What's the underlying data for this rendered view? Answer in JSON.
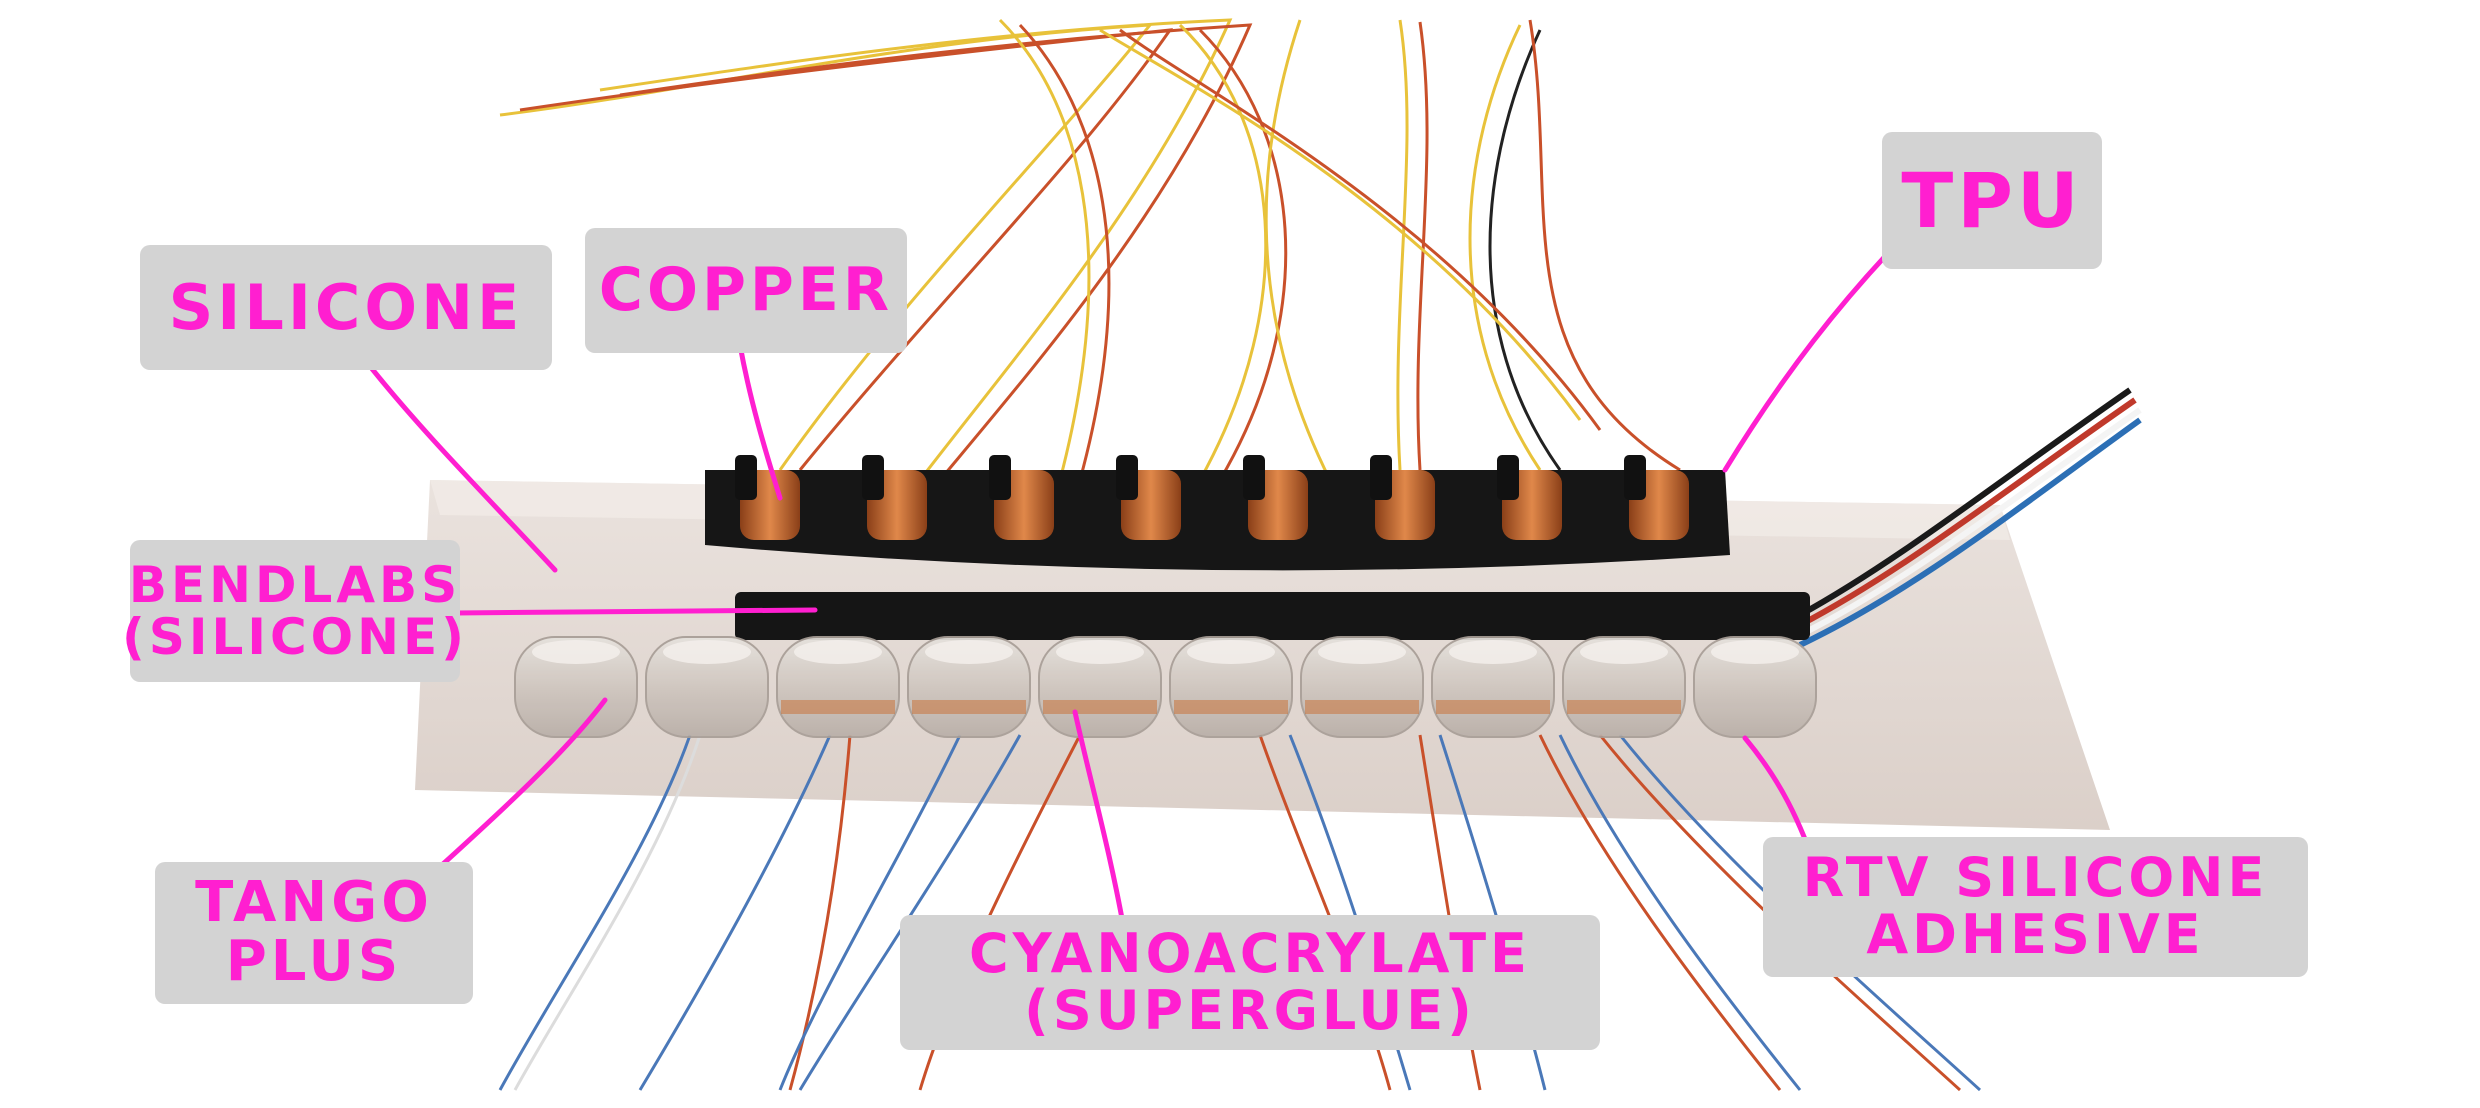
{
  "labels": {
    "silicone": "SILICONE",
    "copper": "COPPER",
    "tpu": "TPU",
    "bendlabs": "BENDLABS\n(SILICONE)",
    "tango_plus": "TANGO\nPLUS",
    "cyanoacrylate": "CYANOACRYLATE\n(SUPERGLUE)",
    "rtv": "RTV SILICONE\nADHESIVE"
  },
  "colors": {
    "annotation": "#ff1fd0",
    "label_bg": "#d3d3d3",
    "copper": "#c8733a",
    "housing": "#161616"
  }
}
